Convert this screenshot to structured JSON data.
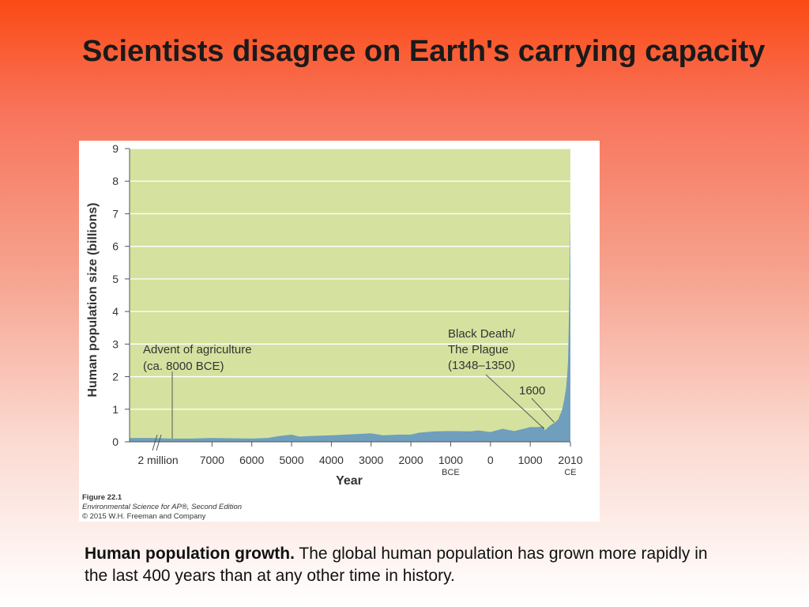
{
  "slide": {
    "title": "Scientists disagree on Earth's carrying capacity",
    "caption_lead": "Human population growth.",
    "caption_body": " The global human population has grown more rapidly in the last 400 years than at any other time in history."
  },
  "figure_credit": {
    "figure_number": "Figure 22.1",
    "source": "Environmental Science for AP®, Second Edition",
    "copyright": "© 2015 W.H. Freeman and Company"
  },
  "colors": {
    "plot_background": "#d5e29f",
    "area_fill": "#6f9fbc",
    "gridline": "#ffffff"
  },
  "chart_data": {
    "type": "area",
    "title": "",
    "xlabel": "Year",
    "ylabel": "Human population size (billions)",
    "ylim": [
      0,
      9
    ],
    "y_ticks": [
      "0",
      "1",
      "2",
      "3",
      "4",
      "5",
      "6",
      "7",
      "8",
      "9"
    ],
    "x_tick_labels": [
      {
        "label": "2 million",
        "sub": ""
      },
      {
        "label": "7000",
        "sub": ""
      },
      {
        "label": "6000",
        "sub": ""
      },
      {
        "label": "5000",
        "sub": ""
      },
      {
        "label": "4000",
        "sub": ""
      },
      {
        "label": "3000",
        "sub": ""
      },
      {
        "label": "2000",
        "sub": ""
      },
      {
        "label": "1000",
        "sub": "BCE"
      },
      {
        "label": "0",
        "sub": ""
      },
      {
        "label": "1000",
        "sub": ""
      },
      {
        "label": "2010",
        "sub": "CE"
      }
    ],
    "axis_break": "between 2 million and 8000 BCE",
    "grid": true,
    "series": [
      {
        "points": [
          {
            "year": -8500,
            "pop": 0.12
          },
          {
            "year": -8000,
            "pop": 0.1
          },
          {
            "year": -7500,
            "pop": 0.1
          },
          {
            "year": -7000,
            "pop": 0.12
          },
          {
            "year": -6500,
            "pop": 0.11
          },
          {
            "year": -6000,
            "pop": 0.1
          },
          {
            "year": -5600,
            "pop": 0.12
          },
          {
            "year": -5300,
            "pop": 0.18
          },
          {
            "year": -5000,
            "pop": 0.22
          },
          {
            "year": -4800,
            "pop": 0.16
          },
          {
            "year": -4500,
            "pop": 0.18
          },
          {
            "year": -4000,
            "pop": 0.2
          },
          {
            "year": -3500,
            "pop": 0.23
          },
          {
            "year": -3000,
            "pop": 0.26
          },
          {
            "year": -2700,
            "pop": 0.2
          },
          {
            "year": -2300,
            "pop": 0.22
          },
          {
            "year": -2000,
            "pop": 0.22
          },
          {
            "year": -1800,
            "pop": 0.28
          },
          {
            "year": -1400,
            "pop": 0.32
          },
          {
            "year": -1000,
            "pop": 0.33
          },
          {
            "year": -500,
            "pop": 0.32
          },
          {
            "year": -300,
            "pop": 0.35
          },
          {
            "year": 0,
            "pop": 0.3
          },
          {
            "year": 300,
            "pop": 0.4
          },
          {
            "year": 600,
            "pop": 0.33
          },
          {
            "year": 1000,
            "pop": 0.45
          },
          {
            "year": 1200,
            "pop": 0.45
          },
          {
            "year": 1340,
            "pop": 0.47
          },
          {
            "year": 1360,
            "pop": 0.35
          },
          {
            "year": 1500,
            "pop": 0.5
          },
          {
            "year": 1600,
            "pop": 0.58
          },
          {
            "year": 1700,
            "pop": 0.68
          },
          {
            "year": 1800,
            "pop": 0.98
          },
          {
            "year": 1850,
            "pop": 1.26
          },
          {
            "year": 1900,
            "pop": 1.65
          },
          {
            "year": 1930,
            "pop": 2.07
          },
          {
            "year": 1950,
            "pop": 2.5
          },
          {
            "year": 1960,
            "pop": 3.03
          },
          {
            "year": 1970,
            "pop": 3.7
          },
          {
            "year": 1980,
            "pop": 4.45
          },
          {
            "year": 1990,
            "pop": 5.3
          },
          {
            "year": 2000,
            "pop": 6.1
          },
          {
            "year": 2010,
            "pop": 6.9
          }
        ]
      }
    ],
    "annotations": {
      "agriculture": {
        "lines": [
          "Advent of agriculture",
          "(ca. 8000 BCE)"
        ],
        "year": -8000
      },
      "black_death": {
        "lines": [
          "Black Death/",
          "The Plague",
          "(1348–1350)"
        ],
        "year": 1350
      },
      "year_1600": {
        "label": "1600",
        "year": 1600
      }
    }
  }
}
